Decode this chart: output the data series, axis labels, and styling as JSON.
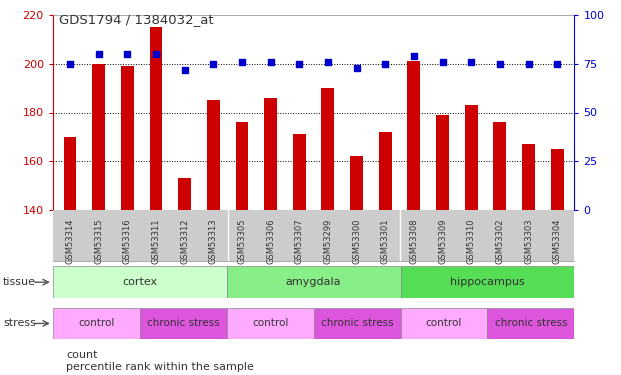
{
  "title": "GDS1794 / 1384032_at",
  "samples": [
    "GSM53314",
    "GSM53315",
    "GSM53316",
    "GSM53311",
    "GSM53312",
    "GSM53313",
    "GSM53305",
    "GSM53306",
    "GSM53307",
    "GSM53299",
    "GSM53300",
    "GSM53301",
    "GSM53308",
    "GSM53309",
    "GSM53310",
    "GSM53302",
    "GSM53303",
    "GSM53304"
  ],
  "counts": [
    170,
    200,
    199,
    215,
    153,
    185,
    176,
    186,
    171,
    190,
    162,
    172,
    201,
    179,
    183,
    176,
    167,
    165
  ],
  "percentiles": [
    75,
    80,
    80,
    80,
    72,
    75,
    76,
    76,
    75,
    76,
    73,
    75,
    79,
    76,
    76,
    75,
    75,
    75
  ],
  "ylim_left": [
    140,
    220
  ],
  "ylim_right": [
    0,
    100
  ],
  "yticks_left": [
    140,
    160,
    180,
    200,
    220
  ],
  "yticks_right": [
    0,
    25,
    50,
    75,
    100
  ],
  "bar_color": "#cc0000",
  "dot_color": "#0000cc",
  "tissue_groups": [
    {
      "label": "cortex",
      "start": 0,
      "end": 6,
      "color": "#ccffcc"
    },
    {
      "label": "amygdala",
      "start": 6,
      "end": 12,
      "color": "#88ee88"
    },
    {
      "label": "hippocampus",
      "start": 12,
      "end": 18,
      "color": "#55dd55"
    }
  ],
  "stress_groups": [
    {
      "label": "control",
      "start": 0,
      "end": 3,
      "color": "#ffaaff"
    },
    {
      "label": "chronic stress",
      "start": 3,
      "end": 6,
      "color": "#dd55dd"
    },
    {
      "label": "control",
      "start": 6,
      "end": 9,
      "color": "#ffaaff"
    },
    {
      "label": "chronic stress",
      "start": 9,
      "end": 12,
      "color": "#dd55dd"
    },
    {
      "label": "control",
      "start": 12,
      "end": 15,
      "color": "#ffaaff"
    },
    {
      "label": "chronic stress",
      "start": 15,
      "end": 18,
      "color": "#dd55dd"
    }
  ],
  "left_axis_color": "#cc0000",
  "right_axis_color": "#0000cc",
  "chart_bg": "#ffffff",
  "label_bg": "#cccccc",
  "grid_yticks": [
    160,
    180,
    200
  ]
}
